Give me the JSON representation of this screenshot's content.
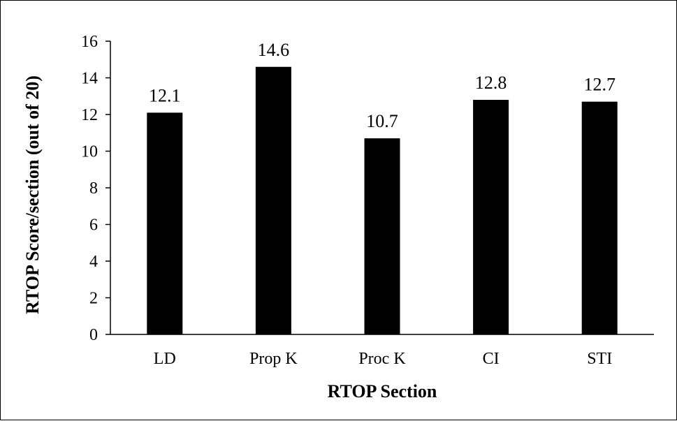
{
  "chart_data": {
    "type": "bar",
    "categories": [
      "LD",
      "Prop K",
      "Proc K",
      "CI",
      "STI"
    ],
    "values": [
      12.1,
      14.6,
      10.7,
      12.8,
      12.7
    ],
    "data_labels": [
      "12.1",
      "14.6",
      "10.7",
      "12.8",
      "12.7"
    ],
    "xlabel": "RTOP Section",
    "ylabel": "RTOP Score/section (out of 20)",
    "ylim": [
      0,
      16
    ],
    "yticks": [
      0,
      2,
      4,
      6,
      8,
      10,
      12,
      14,
      16
    ],
    "grid": false,
    "legend": "none",
    "bar_color": "#000000"
  }
}
